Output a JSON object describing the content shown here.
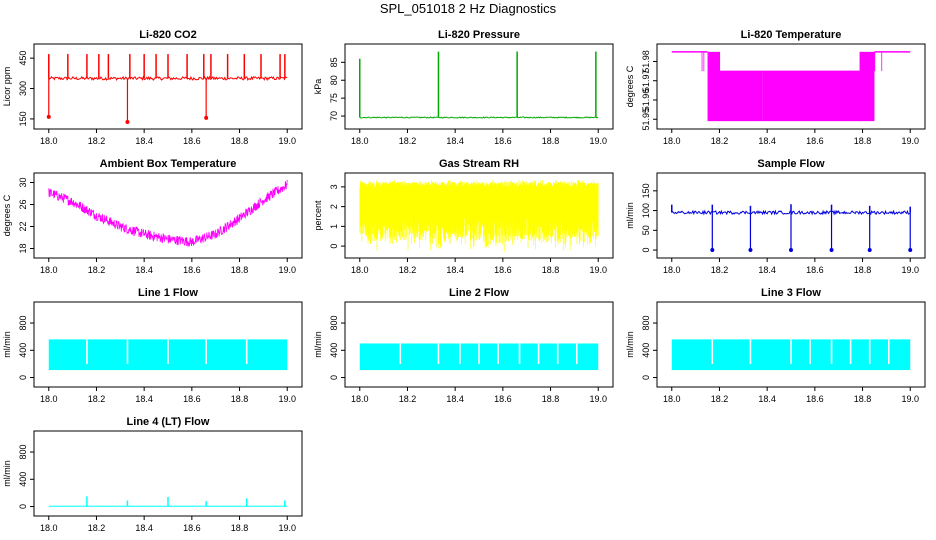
{
  "figure": {
    "title": "SPL_051018  2 Hz Diagnostics"
  },
  "chart_data": [
    {
      "type": "line",
      "title": "Li-820 CO2",
      "xlabel": "",
      "ylabel": "Licor ppm",
      "color": "#ff0000",
      "xticks": [
        "18.0",
        "18.2",
        "18.4",
        "18.6",
        "18.8",
        "19.0"
      ],
      "yticks": [
        "150",
        "300",
        "450"
      ],
      "xlim": [
        17.98,
        19.02
      ],
      "ylim": [
        120,
        500
      ],
      "series": [
        {
          "kind": "flat_spiky",
          "base": 350,
          "noise": 8,
          "outlier_frac": 0.0,
          "spikes_up": [
            [
              18.0,
              470
            ],
            [
              18.08,
              470
            ],
            [
              18.16,
              470
            ],
            [
              18.21,
              470
            ],
            [
              18.25,
              470
            ],
            [
              18.34,
              470
            ],
            [
              18.4,
              470
            ],
            [
              18.45,
              470
            ],
            [
              18.5,
              470
            ],
            [
              18.58,
              470
            ],
            [
              18.65,
              470
            ],
            [
              18.68,
              470
            ],
            [
              18.75,
              470
            ],
            [
              18.82,
              470
            ],
            [
              18.89,
              470
            ],
            [
              18.97,
              470
            ],
            [
              18.99,
              470
            ]
          ],
          "spikes_down": [
            [
              18.0,
              160
            ],
            [
              18.33,
              135
            ],
            [
              18.66,
              155
            ]
          ]
        }
      ]
    },
    {
      "type": "line",
      "title": "Li-820 Pressure",
      "xlabel": "",
      "ylabel": "kPa",
      "color": "#00aa00",
      "xticks": [
        "18.0",
        "18.2",
        "18.4",
        "18.6",
        "18.8",
        "19.0"
      ],
      "yticks": [
        "70",
        "75",
        "80",
        "85"
      ],
      "xlim": [
        17.98,
        19.02
      ],
      "ylim": [
        67.5,
        89
      ],
      "series": [
        {
          "kind": "flat_spiky",
          "base": 69.6,
          "noise": 0.15,
          "outlier_frac": 0.0,
          "spikes_up": [
            [
              18.0,
              86
            ],
            [
              18.33,
              88
            ],
            [
              18.66,
              88
            ],
            [
              18.99,
              88
            ]
          ],
          "spikes_down": []
        }
      ]
    },
    {
      "type": "line",
      "title": "Li-820 Temperature",
      "xlabel": "",
      "ylabel": "degrees C",
      "color": "#ff00ff",
      "xticks": [
        "18.0",
        "18.2",
        "18.4",
        "18.6",
        "18.8",
        "19.0"
      ],
      "yticks": [
        "51.95",
        "51.96",
        "51.97",
        "51.98"
      ],
      "xlim": [
        17.98,
        19.02
      ],
      "ylim": [
        51.947,
        51.987
      ],
      "series": [
        {
          "kind": "band_segments",
          "hi": 51.985,
          "lo": 51.975,
          "lo2": 51.949,
          "segments": [
            [
              18.0,
              18.15,
              "hi"
            ],
            [
              18.15,
              18.2,
              "mid"
            ],
            [
              18.2,
              18.38,
              "low"
            ],
            [
              18.38,
              18.63,
              "low"
            ],
            [
              18.63,
              18.79,
              "low"
            ],
            [
              18.79,
              18.85,
              "mid"
            ],
            [
              18.85,
              19.0,
              "hi"
            ]
          ]
        }
      ]
    },
    {
      "type": "line",
      "title": "Ambient Box Temperature",
      "xlabel": "",
      "ylabel": "degrees C",
      "color": "#ff00ff",
      "xticks": [
        "18.0",
        "18.2",
        "18.4",
        "18.6",
        "18.8",
        "19.0"
      ],
      "yticks": [
        "18",
        "22",
        "26",
        "30"
      ],
      "xlim": [
        17.98,
        19.02
      ],
      "ylim": [
        17,
        31
      ],
      "series": [
        {
          "kind": "curve",
          "points": [
            [
              18.0,
              28.2
            ],
            [
              18.1,
              26.5
            ],
            [
              18.2,
              24.0
            ],
            [
              18.3,
              22.0
            ],
            [
              18.4,
              20.6
            ],
            [
              18.5,
              19.7
            ],
            [
              18.6,
              19.2
            ],
            [
              18.7,
              20.6
            ],
            [
              18.8,
              23.5
            ],
            [
              18.9,
              26.8
            ],
            [
              19.0,
              29.6
            ]
          ],
          "noise": 0.9
        }
      ]
    },
    {
      "type": "line",
      "title": "Gas Stream RH",
      "xlabel": "",
      "ylabel": "percent",
      "color": "#ffff00",
      "xticks": [
        "18.0",
        "18.2",
        "18.4",
        "18.6",
        "18.8",
        "19.0"
      ],
      "yticks": [
        "0",
        "1",
        "2",
        "3"
      ],
      "xlim": [
        17.98,
        19.02
      ],
      "ylim": [
        -0.4,
        3.5
      ],
      "series": [
        {
          "kind": "dense_band",
          "hi": 3.1,
          "lo": 0.3,
          "floor": -0.35,
          "ceil": 3.35
        }
      ]
    },
    {
      "type": "line",
      "title": "Sample Flow",
      "xlabel": "",
      "ylabel": "ml/min",
      "color": "#0000dd",
      "xticks": [
        "18.0",
        "18.2",
        "18.4",
        "18.6",
        "18.8",
        "19.0"
      ],
      "yticks": [
        "0",
        "50",
        "100",
        "150"
      ],
      "xlim": [
        17.98,
        19.02
      ],
      "ylim": [
        -10,
        185
      ],
      "series": [
        {
          "kind": "flat_spiky",
          "base": 95,
          "noise": 4,
          "outlier_frac": 0.0,
          "spikes_up": [
            [
              18.0,
              115
            ],
            [
              18.17,
              115
            ],
            [
              18.33,
              112
            ],
            [
              18.5,
              116
            ],
            [
              18.67,
              115
            ],
            [
              18.83,
              112
            ],
            [
              19.0,
              110
            ]
          ],
          "spikes_down": [
            [
              18.17,
              0
            ],
            [
              18.33,
              0
            ],
            [
              18.5,
              0
            ],
            [
              18.67,
              0
            ],
            [
              18.83,
              0
            ],
            [
              19.0,
              0
            ]
          ]
        }
      ]
    },
    {
      "type": "line",
      "title": "Line 1 Flow",
      "xlabel": "",
      "ylabel": "ml/min",
      "color": "#00ffff",
      "xticks": [
        "18.0",
        "18.2",
        "18.4",
        "18.6",
        "18.8",
        "19.0"
      ],
      "yticks": [
        "0",
        "400",
        "800"
      ],
      "xlim": [
        17.98,
        19.02
      ],
      "ylim": [
        -80,
        1050
      ],
      "series": [
        {
          "kind": "dense_block",
          "hi": 560,
          "lo": 110,
          "gaps": [
            18.16,
            18.33,
            18.5,
            18.66,
            18.83
          ]
        }
      ]
    },
    {
      "type": "line",
      "title": "Line 2 Flow",
      "xlabel": "",
      "ylabel": "ml/min",
      "color": "#00ffff",
      "xticks": [
        "18.0",
        "18.2",
        "18.4",
        "18.6",
        "18.8",
        "19.0"
      ],
      "yticks": [
        "0",
        "400",
        "800"
      ],
      "xlim": [
        17.98,
        19.02
      ],
      "ylim": [
        -80,
        1050
      ],
      "series": [
        {
          "kind": "dense_block",
          "hi": 500,
          "lo": 110,
          "gaps": [
            18.17,
            18.33,
            18.42,
            18.5,
            18.58,
            18.67,
            18.75,
            18.83,
            18.91
          ]
        }
      ]
    },
    {
      "type": "line",
      "title": "Line 3 Flow",
      "xlabel": "",
      "ylabel": "ml/min",
      "color": "#00ffff",
      "xticks": [
        "18.0",
        "18.2",
        "18.4",
        "18.6",
        "18.8",
        "19.0"
      ],
      "yticks": [
        "0",
        "400",
        "800"
      ],
      "xlim": [
        17.98,
        19.02
      ],
      "ylim": [
        -80,
        1050
      ],
      "series": [
        {
          "kind": "dense_block",
          "hi": 560,
          "lo": 110,
          "gaps": [
            18.17,
            18.33,
            18.5,
            18.58,
            18.67,
            18.75,
            18.83,
            18.91
          ]
        }
      ]
    },
    {
      "type": "line",
      "title": "Line 4 (LT) Flow",
      "xlabel": "",
      "ylabel": "ml/min",
      "color": "#00ffff",
      "xticks": [
        "18.0",
        "18.2",
        "18.4",
        "18.6",
        "18.8",
        "19.0"
      ],
      "yticks": [
        "0",
        "400",
        "800"
      ],
      "xlim": [
        17.98,
        19.02
      ],
      "ylim": [
        -80,
        1050
      ],
      "series": [
        {
          "kind": "flat_spiky",
          "base": 5,
          "noise": 2,
          "outlier_frac": 0.0,
          "spikes_up": [
            [
              18.16,
              150
            ],
            [
              18.33,
              90
            ],
            [
              18.5,
              140
            ],
            [
              18.66,
              80
            ],
            [
              18.83,
              120
            ],
            [
              18.99,
              90
            ]
          ],
          "spikes_down": []
        }
      ]
    }
  ]
}
